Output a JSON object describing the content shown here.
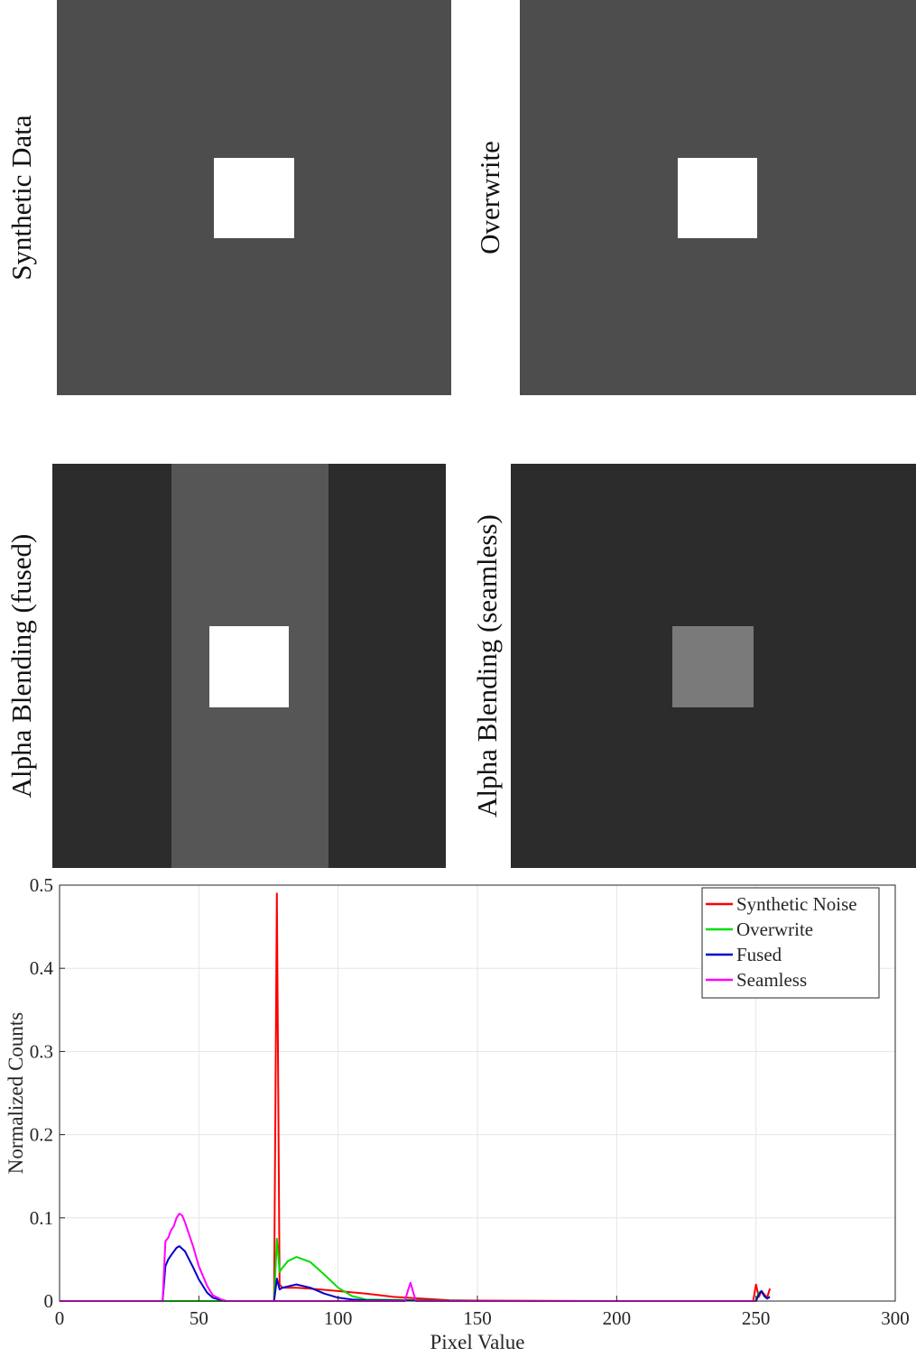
{
  "panels": [
    {
      "label": "Synthetic Data"
    },
    {
      "label": "Overwrite"
    },
    {
      "label": "Alpha Blending (fused)"
    },
    {
      "label": "Alpha Blending (seamless)"
    }
  ],
  "colors": {
    "synthetic_noise": "#ff0000",
    "overwrite": "#00dd00",
    "fused": "#0000cc",
    "seamless": "#ff00ff"
  },
  "chart_data": {
    "type": "line",
    "title": "",
    "xlabel": "Pixel Value",
    "ylabel": "Normalized Counts",
    "xlim": [
      0,
      300
    ],
    "ylim": [
      0,
      0.5
    ],
    "xticks": [
      0,
      50,
      100,
      150,
      200,
      250,
      300
    ],
    "yticks": [
      0,
      0.1,
      0.2,
      0.3,
      0.4,
      0.5
    ],
    "grid": true,
    "legend_position": "top-right",
    "series": [
      {
        "name": "Synthetic Noise",
        "color": "#ff0000",
        "x": [
          0,
          77,
          78,
          79,
          80,
          85,
          90,
          100,
          110,
          120,
          130,
          140,
          150,
          200,
          249,
          250,
          251,
          252,
          253,
          254,
          255
        ],
        "y": [
          0,
          0,
          0.49,
          0.02,
          0.016,
          0.016,
          0.015,
          0.012,
          0.009,
          0.005,
          0.003,
          0.001,
          0.0005,
          0,
          0,
          0.02,
          0.005,
          0.012,
          0.008,
          0.004,
          0.015
        ]
      },
      {
        "name": "Overwrite",
        "color": "#00dd00",
        "x": [
          0,
          77,
          78,
          79,
          80,
          82,
          85,
          90,
          95,
          100,
          105,
          110,
          150,
          200,
          250,
          251,
          252,
          253,
          254,
          255
        ],
        "y": [
          0,
          0,
          0.075,
          0.035,
          0.04,
          0.048,
          0.053,
          0.047,
          0.032,
          0.016,
          0.006,
          0.002,
          0,
          0,
          0,
          0.01,
          0.012,
          0.006,
          0.003,
          0.005
        ]
      },
      {
        "name": "Fused",
        "color": "#0000cc",
        "x": [
          0,
          37,
          38,
          39,
          40,
          42,
          43,
          45,
          48,
          50,
          53,
          55,
          58,
          60,
          77,
          78,
          79,
          80,
          85,
          90,
          95,
          100,
          105,
          110,
          150,
          200,
          250,
          251,
          252,
          253,
          254,
          255
        ],
        "y": [
          0,
          0,
          0.042,
          0.05,
          0.055,
          0.064,
          0.066,
          0.06,
          0.04,
          0.026,
          0.01,
          0.004,
          0.001,
          0,
          0,
          0.027,
          0.014,
          0.016,
          0.02,
          0.016,
          0.009,
          0.004,
          0.002,
          0.001,
          0,
          0,
          0,
          0.008,
          0.012,
          0.006,
          0.003,
          0.005
        ]
      },
      {
        "name": "Seamless",
        "color": "#ff00ff",
        "x": [
          0,
          37,
          38,
          39,
          40,
          41,
          42,
          43,
          44,
          45,
          48,
          50,
          53,
          55,
          58,
          60,
          124,
          125,
          126,
          127,
          128,
          250
        ],
        "y": [
          0,
          0,
          0.072,
          0.076,
          0.085,
          0.09,
          0.1,
          0.105,
          0.103,
          0.095,
          0.065,
          0.042,
          0.018,
          0.007,
          0.002,
          0,
          0,
          0.012,
          0.022,
          0.01,
          0,
          0
        ]
      }
    ]
  }
}
